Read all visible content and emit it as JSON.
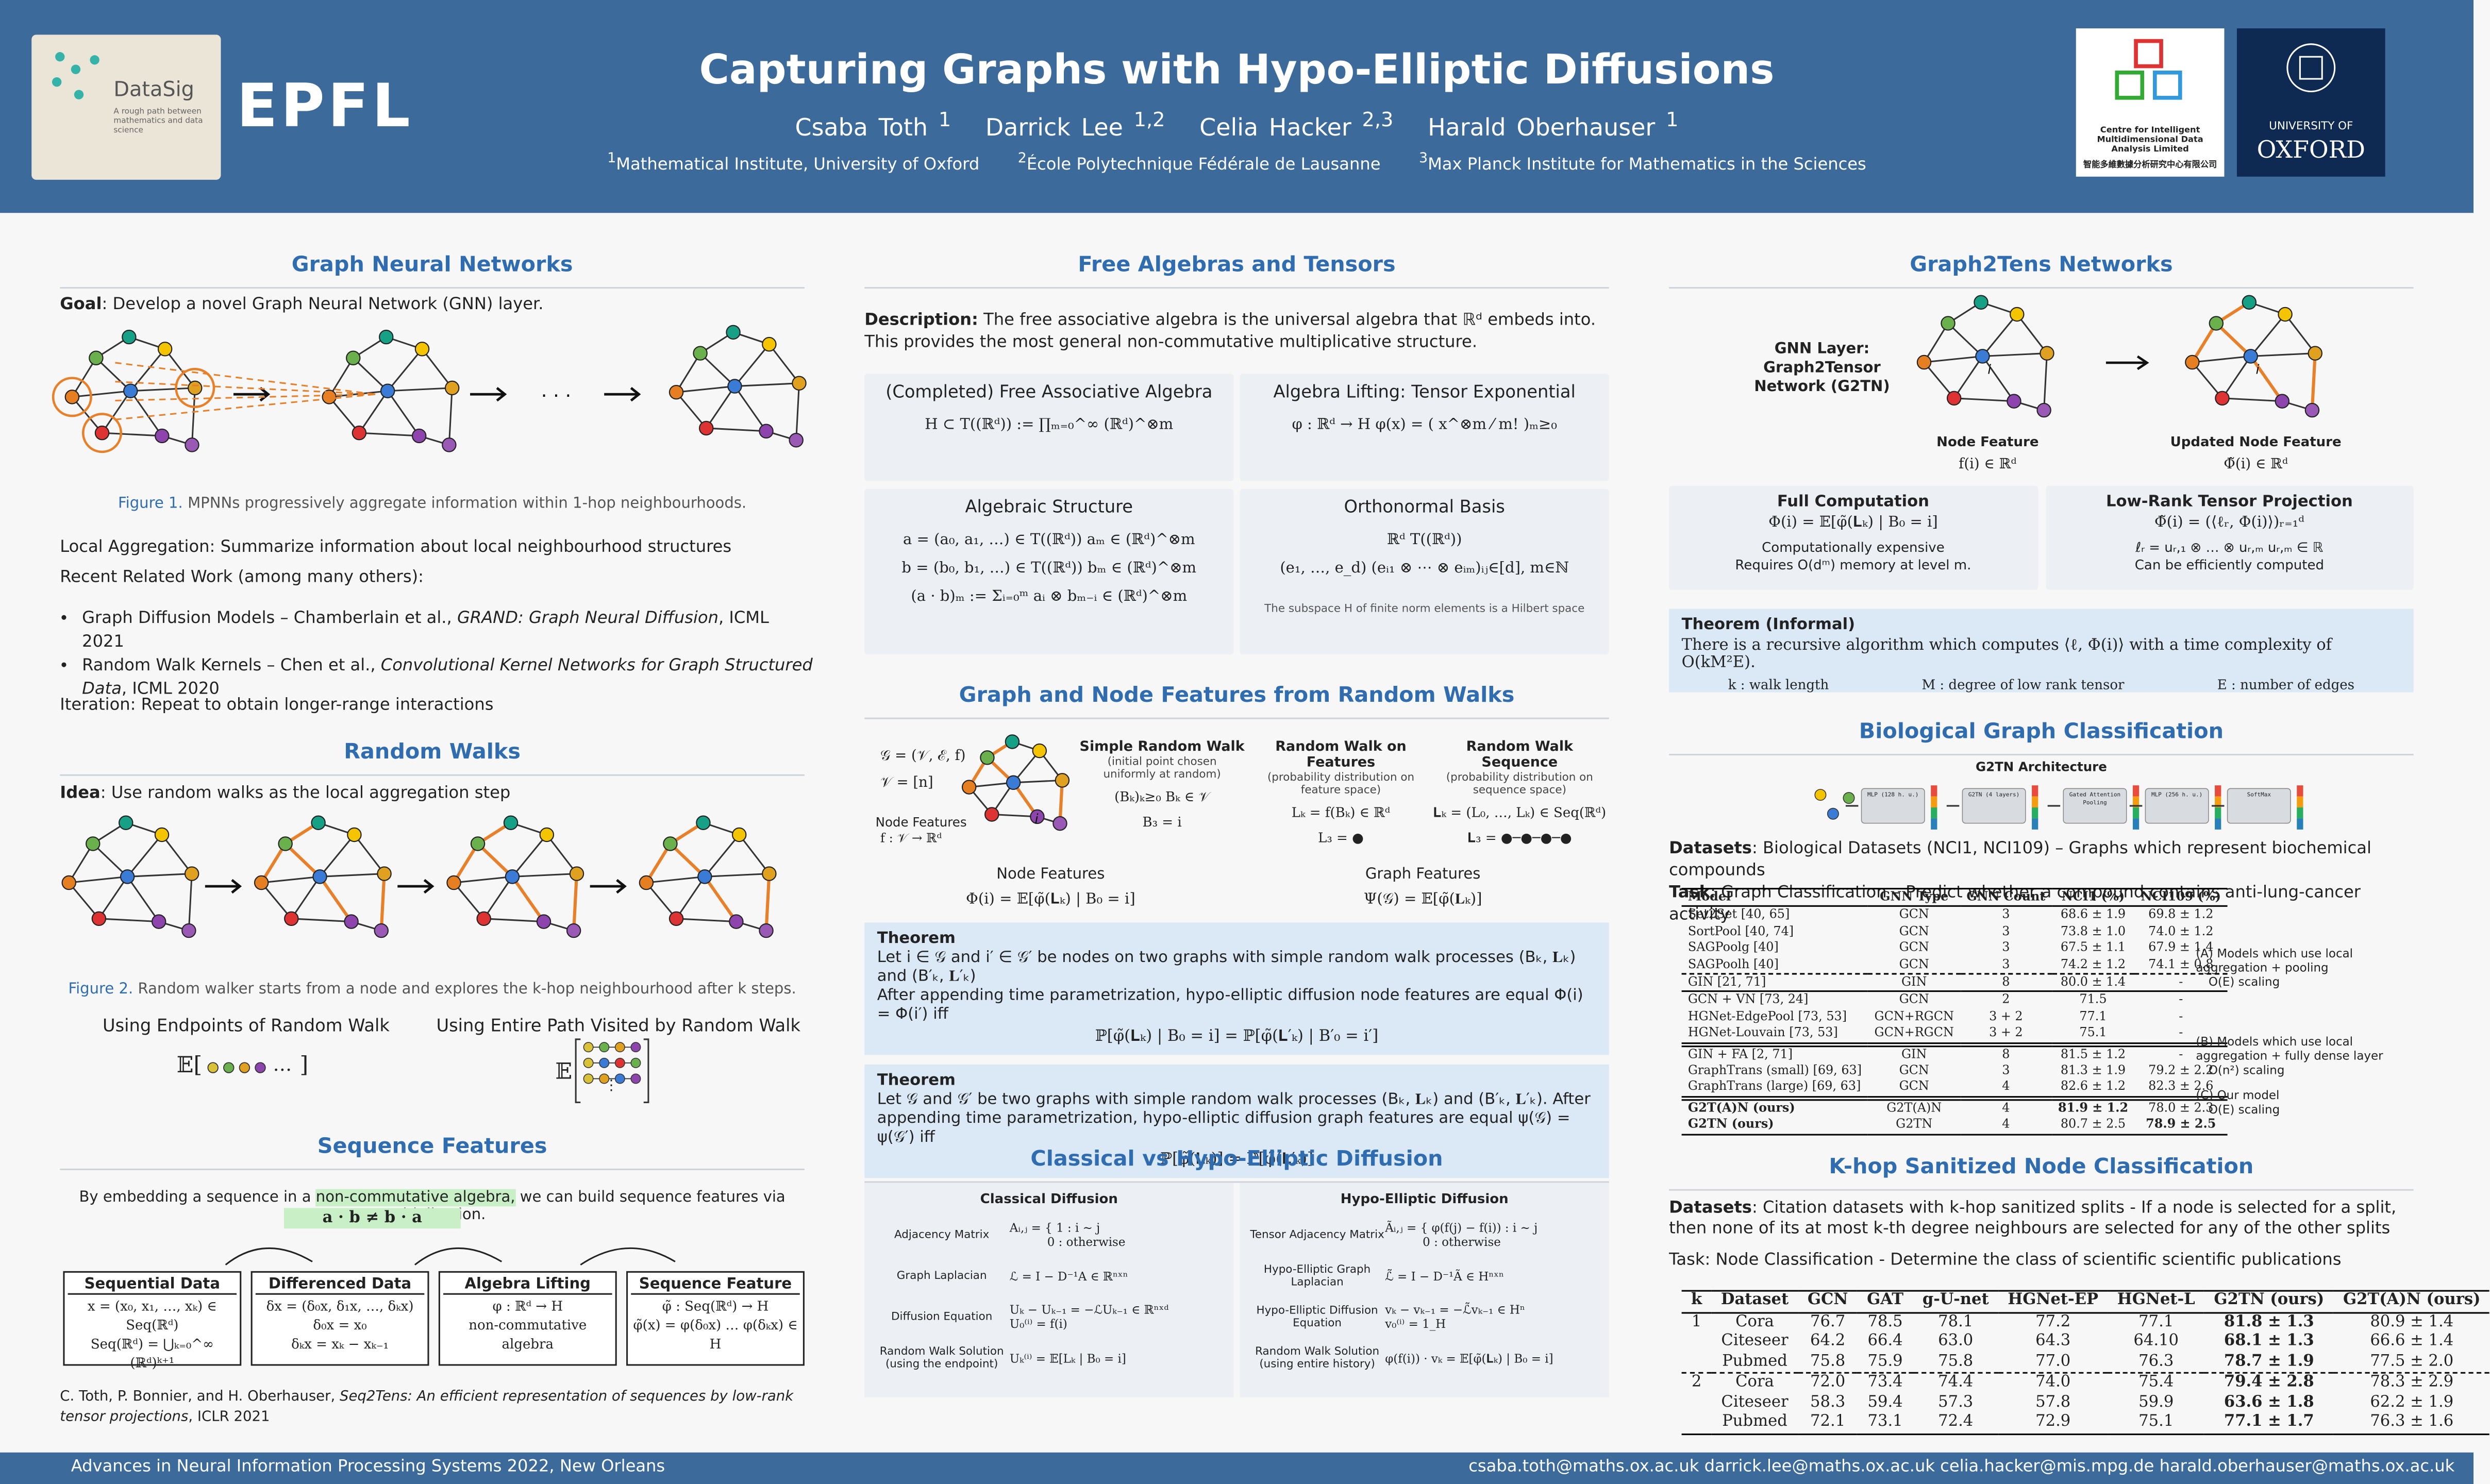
{
  "header": {
    "logo_text": "DataSig",
    "logo_sub": "A rough path between mathematics and data science",
    "epfl": "EPFL",
    "title": "Capturing Graphs with Hypo-Elliptic Diffusions",
    "authors": [
      {
        "name": "Csaba Toth",
        "sup": "1"
      },
      {
        "name": "Darrick Lee",
        "sup": "1,2"
      },
      {
        "name": "Celia Hacker",
        "sup": "2,3"
      },
      {
        "name": "Harald Oberhauser",
        "sup": "1"
      }
    ],
    "affiliations": [
      {
        "sup": "1",
        "text": "Mathematical Institute, University of Oxford"
      },
      {
        "sup": "2",
        "text": "École Polytechnique Fédérale de Lausanne"
      },
      {
        "sup": "3",
        "text": "Max Planck Institute for Mathematics in the Sciences"
      }
    ],
    "centre_name": "Centre for Intelligent Multidimensional Data Analysis Limited",
    "centre_name_zh": "智能多維數據分析研究中心有限公司",
    "oxford_top": "UNIVERSITY OF",
    "oxford_name": "OXFORD"
  },
  "gnn": {
    "heading": "Graph Neural Networks",
    "goal_label": "Goal",
    "goal": ": Develop a novel Graph Neural Network (GNN) layer.",
    "dots": "· · ·",
    "fig_label": "Figure 1.",
    "fig_caption": "MPNNs progressively aggregate information within 1-hop neighbourhoods.",
    "local_label": "Local Aggregation",
    "local": ": Summarize information about local neighbourhood structures",
    "recent_label": "Recent Related Work",
    "recent": " (among many others):",
    "refs": [
      {
        "pre": "Graph Diffusion Models – Chamberlain et al., ",
        "title": "GRAND: Graph Neural Diffusion",
        "post": ", ICML 2021"
      },
      {
        "pre": "Random Walk Kernels – Chen et al., ",
        "title": "Convolutional Kernel Networks for Graph Structured Data",
        "post": ", ICML 2020"
      }
    ],
    "iter_label": "Iteration",
    "iter": ": Repeat to obtain longer-range interactions"
  },
  "rw": {
    "heading": "Random Walks",
    "idea_label": "Idea",
    "idea": ": Use random walks as the local aggregation step",
    "fig_label": "Figure 2.",
    "fig_caption": "Random walker starts from a node and explores the k-hop neighbourhood after k steps.",
    "endpoints": "Using Endpoints of Random Walk",
    "entire": "Using Entire Path Visited by Random Walk",
    "expect_open": "𝔼[",
    "expect_dots": "…",
    "expect_close": "]",
    "expect_open2": "𝔼",
    "vdots": "⋮"
  },
  "seq": {
    "heading": "Sequence Features",
    "pre": "By embedding a sequence in a ",
    "highlight": "non-commutative algebra,",
    "post": " we can build sequence features via multiplication.",
    "formula": "a · b ≠ b · a",
    "boxes": [
      {
        "title": "Sequential Data",
        "lines": [
          "x = (x₀, x₁, …, xₖ) ∈ Seq(ℝᵈ)",
          "Seq(ℝᵈ) = ⋃ₖ₌₀^∞ (ℝᵈ)ᵏ⁺¹"
        ]
      },
      {
        "title": "Differenced Data",
        "lines": [
          "δx = (δ₀x, δ₁x, …, δₖx)",
          "δ₀x = x₀",
          "δₖx = xₖ − xₖ₋₁"
        ]
      },
      {
        "title": "Algebra Lifting",
        "lines": [
          "φ : ℝᵈ → H",
          "non-commutative",
          "algebra"
        ]
      },
      {
        "title": "Sequence Feature",
        "lines": [
          "φ̃ : Seq(ℝᵈ) → H",
          "φ̃(x) = φ(δ₀x) … φ(δₖx) ∈ H"
        ]
      }
    ],
    "cite_pre": "C. Toth, P. Bonnier, and H. Oberhauser, ",
    "cite_title": "Seq2Tens: An efficient representation of sequences by low-rank tensor projections",
    "cite_post": ", ICLR 2021"
  },
  "fa": {
    "heading": "Free Algebras and Tensors",
    "desc_label": "Description:",
    "desc": " The free associative algebra is the universal algebra that ℝᵈ embeds into. This provides the most general non-commutative multiplicative structure.",
    "boxes": [
      {
        "title": "(Completed) Free Associative Algebra",
        "lines": [
          "H ⊂ T((ℝᵈ)) := ∏ₘ₌₀^∞ (ℝᵈ)^⊗m"
        ]
      },
      {
        "title": "Algebra Lifting: Tensor Exponential",
        "lines": [
          "φ : ℝᵈ → H    φ(x) = ( x^⊗m ⁄ m! )ₘ≥₀"
        ]
      },
      {
        "title": "Algebraic Structure",
        "lines": [
          "a = (a₀, a₁, …) ∈ T((ℝᵈ))   aₘ ∈ (ℝᵈ)^⊗m",
          "b = (b₀, b₁, …) ∈ T((ℝᵈ))   bₘ ∈ (ℝᵈ)^⊗m",
          "(a · b)ₘ := Σᵢ₌₀ᵐ aᵢ ⊗ bₘ₋ᵢ ∈ (ℝᵈ)^⊗m"
        ]
      },
      {
        "title": "Orthonormal Basis",
        "lines": [
          "ℝᵈ                T((ℝᵈ))",
          "(e₁, …, e_d)    (eᵢ₁ ⊗ ⋯ ⊗ eᵢₘ)ᵢⱼ∈[d], m∈ℕ",
          "The subspace H of finite norm elements is a Hilbert space"
        ]
      }
    ]
  },
  "rwf": {
    "heading": "Graph and Node Features from Random Walks",
    "defs": [
      "𝒢 = (𝒱, ℰ, f)",
      "𝒱 = [n]"
    ],
    "nf_label": "Node Features",
    "nf_def": "f : 𝒱 → ℝᵈ",
    "node_label": "i",
    "cols": [
      {
        "title": "Simple Random Walk",
        "sub": "(initial point chosen uniformly at random)",
        "lines": [
          "(Bₖ)ₖ≥₀    Bₖ ∈ 𝒱",
          "B₃ = i"
        ]
      },
      {
        "title": "Random Walk on Features",
        "sub": "(probability distribution on feature space)",
        "lines": [
          "Lₖ = f(Bₖ) ∈ ℝᵈ",
          "L₃ = ●"
        ]
      },
      {
        "title": "Random Walk Sequence",
        "sub": "(probability distribution on sequence space)",
        "lines": [
          "𝐋ₖ = (L₀, …, Lₖ) ∈ Seq(ℝᵈ)",
          "𝐋₃ = ●─●─●─●"
        ]
      }
    ],
    "node_feat_title": "Node Features",
    "node_feat": "Φ(i) = 𝔼[φ̃(𝐋ₖ) | B₀ = i]",
    "graph_feat_title": "Graph Features",
    "graph_feat": "Ψ(𝒢) = 𝔼[φ̃(𝐋ₖ)]",
    "theorems": [
      {
        "title": "Theorem",
        "lines": [
          "Let i ∈ 𝒢 and i′ ∈ 𝒢′ be nodes on two graphs with simple random walk processes (Bₖ, 𝐋ₖ) and (B′ₖ, 𝐋′ₖ)",
          "After appending time parametrization, hypo-elliptic diffusion node features are equal  Φ(i) = Φ(i′) iff",
          "ℙ[φ̃(𝐋ₖ) | B₀ = i] = ℙ[φ̃(𝐋′ₖ) | B′₀ = i′]"
        ]
      },
      {
        "title": "Theorem",
        "lines": [
          "Let 𝒢 and 𝒢′ be two graphs with simple random walk processes (Bₖ, 𝐋ₖ) and (B′ₖ, 𝐋′ₖ). After appending time parametrization, hypo-elliptic diffusion graph features are equal ψ(𝒢) = ψ(𝒢′) iff",
          "ℙ[φ̃(𝐋ₖ)] = ℙ[φ̃(𝐋′ₖ)]"
        ]
      }
    ]
  },
  "cvh": {
    "heading": "Classical vs Hypo-Elliptic Diffusion",
    "sides": [
      {
        "title": "Classical Diffusion",
        "rows": [
          {
            "label": "Adjacency Matrix",
            "lines": [
              "Aᵢ,ⱼ = { 1 : i ∼ j",
              "          0 : otherwise"
            ]
          },
          {
            "label": "Graph Laplacian",
            "lines": [
              "ℒ = I − D⁻¹A ∈ ℝⁿˣⁿ"
            ]
          },
          {
            "label": "Diffusion Equation",
            "lines": [
              "Uₖ − Uₖ₋₁ = −ℒUₖ₋₁ ∈ ℝⁿˣᵈ",
              "U₀⁽ⁱ⁾ = f(i)"
            ]
          },
          {
            "label": "Random Walk Solution (using the endpoint)",
            "lines": [
              "Uₖ⁽ⁱ⁾ = 𝔼[Lₖ | B₀ = i]"
            ]
          }
        ]
      },
      {
        "title": "Hypo-Elliptic Diffusion",
        "rows": [
          {
            "label": "Tensor Adjacency Matrix",
            "lines": [
              "Ãᵢ,ⱼ = { φ(f(j) − f(i)) : i ∼ j",
              "          0 : otherwise"
            ]
          },
          {
            "label": "Hypo-Elliptic Graph Laplacian",
            "lines": [
              "ℒ̃ = I − D⁻¹Ã ∈ Hⁿˣⁿ"
            ]
          },
          {
            "label": "Hypo-Elliptic Diffusion Equation",
            "lines": [
              "vₖ − vₖ₋₁ = −ℒ̃vₖ₋₁ ∈ Hⁿ",
              "v₀⁽ⁱ⁾ = 1_H"
            ]
          },
          {
            "label": "Random Walk Solution (using entire history)",
            "lines": [
              "φ(f(i)) · vₖ = 𝔼[φ̃(𝐋ₖ) | B₀ = i]"
            ]
          }
        ]
      }
    ]
  },
  "g2t": {
    "heading": "Graph2Tens Networks",
    "gnn_layer": "GNN Layer: Graph2Tensor Network (G2TN)",
    "node_feature": "Node Feature",
    "node_feature_math": "f(i) ∈ ℝᵈ",
    "updated": "Updated Node Feature",
    "updated_math": "Φ̃(i) ∈ ℝᵈ",
    "node_label": "i",
    "boxes": [
      {
        "title": "Full Computation",
        "lines": [
          "Φ(i) = 𝔼[φ̃(𝐋ₖ) | B₀ = i]",
          "Computationally expensive",
          "Requires O(dᵐ) memory at level m."
        ]
      },
      {
        "title": "Low-Rank Tensor Projection",
        "lines": [
          "Φ̃(i) = (⟨ℓᵣ, Φ(i)⟩)ᵣ₌₁ᵈ",
          "ℓᵣ = uᵣ,₁ ⊗ … ⊗ uᵣ,ₘ    uᵣ,ₘ ∈ ℝ",
          "Can be efficiently computed"
        ]
      }
    ],
    "theorem_title": "Theorem (Informal)",
    "theorem": "There is a recursive algorithm which computes ⟨ℓ, Φ(i)⟩ with a time complexity of O(kM²E).",
    "legend": [
      "k : walk length",
      "M : degree of low rank tensor",
      "E : number of edges"
    ]
  },
  "bio": {
    "heading": "Biological Graph Classification",
    "arch_title": "G2TN Architecture",
    "arch_blocks": [
      "MLP (128 h. u.)",
      "G2TN (4 layers)",
      "Gated Attention Pooling",
      "MLP (256 h. u.)",
      "SoftMax"
    ],
    "datasets_label": "Datasets",
    "datasets": ": Biological Datasets (NCI1, NCI109) – Graphs which represent biochemical compounds",
    "task_label": "Task",
    "task": ": Graph Classification – Predict whether a compound contains anti-lung-cancer activity",
    "table": {
      "header": [
        "Model",
        "GNN Type",
        "GNN Count",
        "NCI1 (%)",
        "NCI109 (%)"
      ],
      "rows": [
        [
          "Set2Set [40, 65]",
          "GCN",
          "3",
          "68.6 ± 1.9",
          "69.8 ± 1.2"
        ],
        [
          "SortPool [40, 74]",
          "GCN",
          "3",
          "73.8 ± 1.0",
          "74.0 ± 1.2"
        ],
        [
          "SAGPoolg [40]",
          "GCN",
          "3",
          "67.5 ± 1.1",
          "67.9 ± 1.4"
        ],
        [
          "SAGPoolh [40]",
          "GCN",
          "3",
          "74.2 ± 1.2",
          "74.1 ± 0.8"
        ],
        [
          "GIN [21, 71]",
          "GIN",
          "8",
          "80.0 ± 1.4",
          "-"
        ],
        [
          "GCN + VN [73, 24]",
          "GCN",
          "2",
          "71.5",
          "-"
        ],
        [
          "HGNet-EdgePool [73, 53]",
          "GCN+RGCN",
          "3 + 2",
          "77.1",
          "-"
        ],
        [
          "HGNet-Louvain [73, 53]",
          "GCN+RGCN",
          "3 + 2",
          "75.1",
          "-"
        ],
        [
          "GIN + FA [2, 71]",
          "GIN",
          "8",
          "81.5 ± 1.2",
          "-"
        ],
        [
          "GraphTrans (small) [69, 63]",
          "GCN",
          "3",
          "81.3 ± 1.9",
          "79.2 ± 2.2"
        ],
        [
          "GraphTrans (large) [69, 63]",
          "GCN",
          "4",
          "82.6 ± 1.2",
          "82.3 ± 2.6"
        ],
        [
          "G2T(A)N (ours)",
          "G2T(A)N",
          "4",
          "81.9 ± 1.2",
          "78.0 ± 2.3"
        ],
        [
          "G2TN (ours)",
          "G2TN",
          "4",
          "80.7 ± 2.5",
          "78.9 ± 2.5"
        ]
      ]
    },
    "notes": [
      {
        "title": "(A) Models which use local aggregation + pooling",
        "item": "O(E) scaling"
      },
      {
        "title": "(B) Models which use local aggregation + fully dense layer",
        "item": "O(n²) scaling"
      },
      {
        "title": "(C) Our model",
        "item": "O(E) scaling"
      }
    ]
  },
  "khop": {
    "heading": "K-hop Sanitized Node Classification",
    "datasets_label": "Datasets",
    "datasets": ": Citation datasets with k-hop sanitized splits - If a node is selected for a split, then none of its at most k-th degree neighbours are selected for any of the other splits",
    "task_label": "Task",
    "task": ": Node Classification - Determine the class of scientific scientific publications",
    "table": {
      "header": [
        "k",
        "Dataset",
        "GCN",
        "GAT",
        "g-U-net",
        "HGNet-EP",
        "HGNet-L",
        "G2TN (ours)",
        "G2T(A)N (ours)"
      ],
      "rows": [
        [
          "1",
          "Cora",
          "76.7",
          "78.5",
          "78.1",
          "77.2",
          "77.1",
          "81.8 ± 1.3",
          "80.9 ± 1.4"
        ],
        [
          null,
          "Citeseer",
          "64.2",
          "66.4",
          "63.0",
          "64.3",
          "64.10",
          "68.1 ± 1.3",
          "66.6 ± 1.4"
        ],
        [
          null,
          "Pubmed",
          "75.8",
          "75.9",
          "75.8",
          "77.0",
          "76.3",
          "78.7 ± 1.9",
          "77.5 ± 2.0"
        ],
        [
          "2",
          "Cora",
          "72.0",
          "73.4",
          "74.4",
          "74.0",
          "75.4",
          "79.4 ± 2.8",
          "78.3 ± 2.9"
        ],
        [
          null,
          "Citeseer",
          "58.3",
          "59.4",
          "57.3",
          "57.8",
          "59.9",
          "63.6 ± 1.8",
          "62.2 ± 1.9"
        ],
        [
          null,
          "Pubmed",
          "72.1",
          "73.1",
          "72.4",
          "72.9",
          "75.1",
          "77.1 ± 1.7",
          "76.3 ± 1.6"
        ]
      ]
    }
  },
  "footer": {
    "left": "Advances in Neural Information Processing Systems 2022, New Orleans",
    "right": "csaba.toth@maths.ox.ac.uk darrick.lee@maths.ox.ac.uk celia.hacker@mis.mpg.de harald.oberhauser@maths.ox.ac.uk"
  }
}
